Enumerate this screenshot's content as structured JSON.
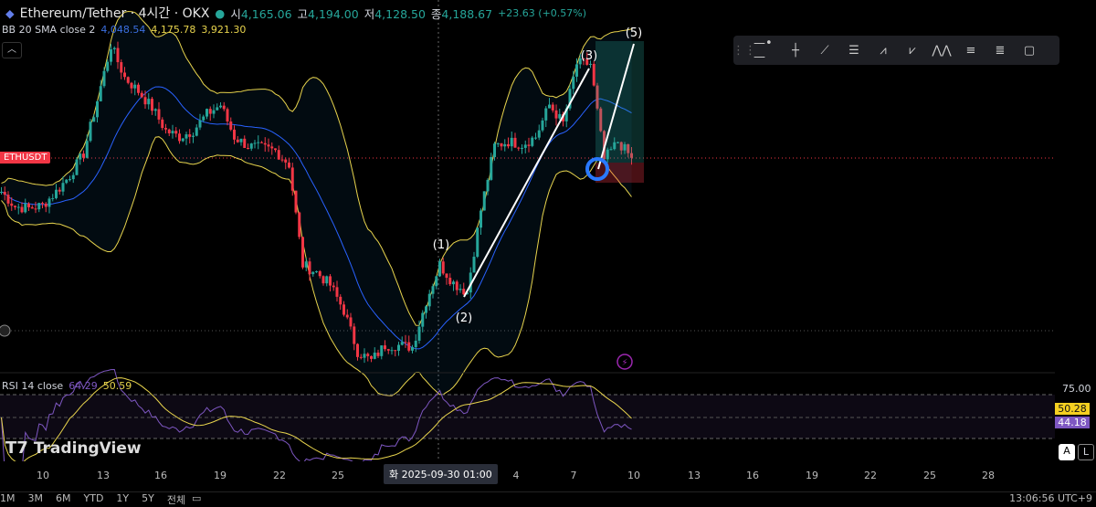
{
  "header": {
    "title": "Ethereum/Tether · 4시간 · OKX",
    "open_label": "시",
    "open": "4,165.06",
    "high_label": "고",
    "high": "4,194.00",
    "low_label": "저",
    "low": "4,128.50",
    "close_label": "종",
    "close": "4,188.67",
    "change": "+23.63 (+0.57%)"
  },
  "bb": {
    "label": "BB 20 SMA close 2",
    "basis": "4,048.54",
    "upper": "4,175.78",
    "lower": "3,921.30",
    "basis_color": "#2962ff",
    "band_color": "#e8d44d"
  },
  "symbol_tag": "ETHUSDT",
  "collapse_icon": "chevron-up-icon",
  "toolbar": {
    "icons": [
      "drag-handle-icon",
      "horizontal-ray-icon",
      "vertical-line-icon",
      "trend-line-icon",
      "fib-retracement-icon",
      "elliott-impulse-icon",
      "abcd-pattern-icon",
      "head-shoulders-icon",
      "parallel-channel-icon",
      "regression-icon",
      "rectangle-icon"
    ]
  },
  "waves": [
    "(1)",
    "(2)",
    "(3)",
    "(5)"
  ],
  "chart_data": {
    "type": "candlestick",
    "symbol": "ETHUSDT",
    "interval": "4h",
    "closes": [
      4070,
      4018,
      4012,
      4022,
      4070,
      4127,
      4204,
      4390,
      4582,
      4470,
      4422,
      4364,
      4284,
      4262,
      4284,
      4342,
      4374,
      4262,
      4230,
      4223,
      4214,
      4166,
      3814,
      3788,
      3743,
      3654,
      3510,
      3478,
      3532,
      3532,
      3526,
      3686,
      3814,
      3750,
      3718,
      4006,
      4230,
      4246,
      4236,
      4262,
      4374,
      4310,
      4518,
      4518,
      4182,
      4246,
      4188.67
    ],
    "up_color": "#26a69a",
    "down_color": "#f23645"
  },
  "rsi": {
    "label": "RSI 14 close",
    "value": "64.29",
    "ma": "50.59",
    "axis_label": "75.00",
    "ma_tag": "50.28",
    "rsi_tag": "44.18"
  },
  "brand": "TradingView",
  "xaxis": {
    "ticks": [
      [
        "10",
        47
      ],
      [
        "13",
        113
      ],
      [
        "16",
        176
      ],
      [
        "19",
        241
      ],
      [
        "22",
        306
      ],
      [
        "25",
        370
      ],
      [
        "4",
        565
      ],
      [
        "7",
        628
      ],
      [
        "10",
        694
      ],
      [
        "13",
        760
      ],
      [
        "16",
        824
      ],
      [
        "19",
        889
      ],
      [
        "22",
        953
      ],
      [
        "25",
        1018
      ],
      [
        "28",
        1082
      ]
    ],
    "crosshair": "화 2025-09-30   01:00"
  },
  "scale_buttons": {
    "auto": "A",
    "log": "L"
  },
  "bottom": {
    "ranges": [
      "1M",
      "3M",
      "6M",
      "YTD",
      "1Y",
      "5Y",
      "전체"
    ],
    "time": "13:06:56 UTC+9"
  }
}
